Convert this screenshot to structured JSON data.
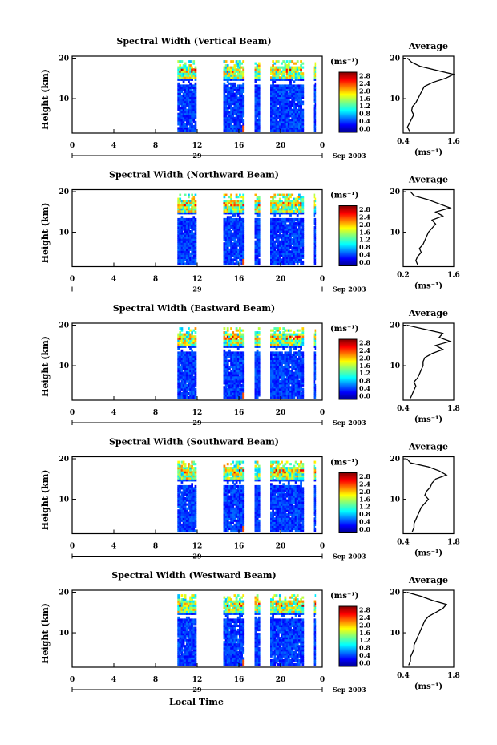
{
  "figure": {
    "xlabel": "Local Time",
    "date_label": "Sep 2003",
    "day_label": "29",
    "colorbar_unit": "(ms⁻¹)"
  },
  "chart_data": [
    {
      "type": "heatmap",
      "title": "Spectral Width (Vertical Beam)",
      "ylabel": "Height (km)",
      "x_ticks": [
        "0",
        "4",
        "8",
        "12",
        "16",
        "20",
        "0"
      ],
      "y_ticks": [
        "20",
        "10"
      ],
      "xlim": [
        0,
        24
      ],
      "ylim": [
        1.5,
        20.5
      ],
      "colorbar_ticks": [
        "2.8",
        "2.4",
        "2.0",
        "1.6",
        "1.2",
        "0.8",
        "0.4",
        "0.0"
      ],
      "data_windows_hours": [
        [
          10.1,
          11.9
        ],
        [
          14.5,
          16.5
        ],
        [
          17.5,
          18.0
        ],
        [
          19.0,
          22.2
        ],
        [
          23.2,
          23.35
        ]
      ],
      "average_profile": {
        "title": "Average",
        "xlabel": "(ms⁻¹)",
        "x_ticks": [
          "0.4",
          "1.6"
        ],
        "xlim": [
          0.4,
          1.6
        ],
        "y_ticks": [
          "20",
          "10"
        ],
        "ylim": [
          1.5,
          20.5
        ],
        "height_km": [
          2,
          3,
          4,
          5,
          6,
          7,
          8,
          9,
          10,
          11,
          12,
          13,
          14,
          15,
          16,
          17,
          18,
          19,
          20
        ],
        "width_ms": [
          0.55,
          0.5,
          0.55,
          0.6,
          0.65,
          0.6,
          0.62,
          0.7,
          0.75,
          0.8,
          0.85,
          0.9,
          1.1,
          1.4,
          1.6,
          1.2,
          0.8,
          0.6,
          0.5
        ]
      }
    },
    {
      "type": "heatmap",
      "title": "Spectral Width (Northward Beam)",
      "ylabel": "Height (km)",
      "x_ticks": [
        "0",
        "4",
        "8",
        "12",
        "16",
        "20",
        "0"
      ],
      "y_ticks": [
        "20",
        "10"
      ],
      "xlim": [
        0,
        24
      ],
      "ylim": [
        1.5,
        20.5
      ],
      "colorbar_ticks": [
        "2.8",
        "2.4",
        "2.0",
        "1.6",
        "1.2",
        "0.8",
        "0.4",
        "0.0"
      ],
      "data_windows_hours": [
        [
          10.1,
          11.9
        ],
        [
          14.5,
          16.5
        ],
        [
          17.5,
          18.0
        ],
        [
          19.0,
          22.2
        ],
        [
          23.2,
          23.35
        ]
      ],
      "average_profile": {
        "title": "Average",
        "xlabel": "(ms⁻¹)",
        "x_ticks": [
          "0.2",
          "1.6"
        ],
        "xlim": [
          0.2,
          1.6
        ],
        "y_ticks": [
          "20",
          "10"
        ],
        "ylim": [
          1.5,
          20.5
        ],
        "height_km": [
          2,
          3,
          4,
          5,
          6,
          7,
          8,
          9,
          10,
          11,
          12,
          13,
          14,
          15,
          16,
          17,
          18,
          19,
          20
        ],
        "width_ms": [
          0.6,
          0.55,
          0.6,
          0.7,
          0.65,
          0.75,
          0.8,
          0.85,
          0.9,
          1.0,
          1.1,
          1.0,
          1.3,
          1.1,
          1.5,
          1.2,
          0.9,
          0.5,
          0.4
        ]
      }
    },
    {
      "type": "heatmap",
      "title": "Spectral Width (Eastward Beam)",
      "ylabel": "Height (km)",
      "x_ticks": [
        "0",
        "4",
        "8",
        "12",
        "16",
        "20",
        "0"
      ],
      "y_ticks": [
        "20",
        "10"
      ],
      "xlim": [
        0,
        24
      ],
      "ylim": [
        1.5,
        20.5
      ],
      "colorbar_ticks": [
        "2.8",
        "2.4",
        "2.0",
        "1.6",
        "1.2",
        "0.8",
        "0.4",
        "0.0"
      ],
      "data_windows_hours": [
        [
          10.1,
          11.9
        ],
        [
          14.5,
          16.5
        ],
        [
          17.5,
          18.0
        ],
        [
          19.0,
          22.2
        ],
        [
          23.2,
          23.35
        ]
      ],
      "average_profile": {
        "title": "Average",
        "xlabel": "(ms⁻¹)",
        "x_ticks": [
          "0.4",
          "1.8"
        ],
        "xlim": [
          0.4,
          1.8
        ],
        "y_ticks": [
          "20",
          "10"
        ],
        "ylim": [
          1.5,
          20.5
        ],
        "height_km": [
          2,
          3,
          4,
          5,
          6,
          7,
          8,
          9,
          10,
          11,
          12,
          13,
          14,
          15,
          16,
          17,
          18,
          19,
          20
        ],
        "width_ms": [
          0.6,
          0.65,
          0.7,
          0.75,
          0.7,
          0.8,
          0.85,
          0.9,
          0.95,
          0.95,
          1.0,
          1.2,
          1.5,
          1.3,
          1.7,
          1.4,
          1.5,
          1.0,
          0.5
        ]
      }
    },
    {
      "type": "heatmap",
      "title": "Spectral Width (Southward Beam)",
      "ylabel": "Height (km)",
      "x_ticks": [
        "0",
        "4",
        "8",
        "12",
        "16",
        "20",
        "0"
      ],
      "y_ticks": [
        "20",
        "10"
      ],
      "xlim": [
        0,
        24
      ],
      "ylim": [
        1.5,
        20.5
      ],
      "colorbar_ticks": [
        "2.8",
        "2.4",
        "2.0",
        "1.6",
        "1.2",
        "0.8",
        "0.4",
        "0.0"
      ],
      "data_windows_hours": [
        [
          10.1,
          11.9
        ],
        [
          14.5,
          16.5
        ],
        [
          17.5,
          18.0
        ],
        [
          19.0,
          22.2
        ],
        [
          23.2,
          23.35
        ]
      ],
      "average_profile": {
        "title": "Average",
        "xlabel": "(ms⁻¹)",
        "x_ticks": [
          "0.4",
          "1.8"
        ],
        "xlim": [
          0.4,
          1.8
        ],
        "y_ticks": [
          "20",
          "10"
        ],
        "ylim": [
          1.5,
          20.5
        ],
        "height_km": [
          2,
          3,
          4,
          5,
          6,
          7,
          8,
          9,
          10,
          11,
          12,
          13,
          14,
          15,
          16,
          17,
          18,
          19,
          20
        ],
        "width_ms": [
          0.65,
          0.7,
          0.7,
          0.75,
          0.8,
          0.85,
          0.9,
          1.0,
          1.1,
          1.0,
          1.05,
          1.15,
          1.2,
          1.3,
          1.6,
          1.4,
          1.1,
          0.6,
          0.5
        ]
      }
    },
    {
      "type": "heatmap",
      "title": "Spectral Width (Westward Beam)",
      "ylabel": "Height (km)",
      "x_ticks": [
        "0",
        "4",
        "8",
        "12",
        "16",
        "20",
        "0"
      ],
      "y_ticks": [
        "20",
        "10"
      ],
      "xlim": [
        0,
        24
      ],
      "ylim": [
        1.5,
        20.5
      ],
      "colorbar_ticks": [
        "2.8",
        "2.4",
        "2.0",
        "1.6",
        "1.2",
        "0.8",
        "0.4",
        "0.0"
      ],
      "data_windows_hours": [
        [
          10.1,
          11.9
        ],
        [
          14.5,
          16.5
        ],
        [
          17.5,
          18.0
        ],
        [
          19.0,
          22.2
        ],
        [
          23.2,
          23.35
        ]
      ],
      "average_profile": {
        "title": "Average",
        "xlabel": "(ms⁻¹)",
        "x_ticks": [
          "0.4",
          "1.8"
        ],
        "xlim": [
          0.4,
          1.8
        ],
        "y_ticks": [
          "20",
          "10"
        ],
        "ylim": [
          1.5,
          20.5
        ],
        "height_km": [
          2,
          3,
          4,
          5,
          6,
          7,
          8,
          9,
          10,
          11,
          12,
          13,
          14,
          15,
          16,
          17,
          18,
          19,
          20
        ],
        "width_ms": [
          0.55,
          0.6,
          0.6,
          0.65,
          0.7,
          0.7,
          0.75,
          0.8,
          0.85,
          0.9,
          0.95,
          1.0,
          1.1,
          1.3,
          1.5,
          1.6,
          1.2,
          0.9,
          0.5
        ]
      }
    }
  ]
}
